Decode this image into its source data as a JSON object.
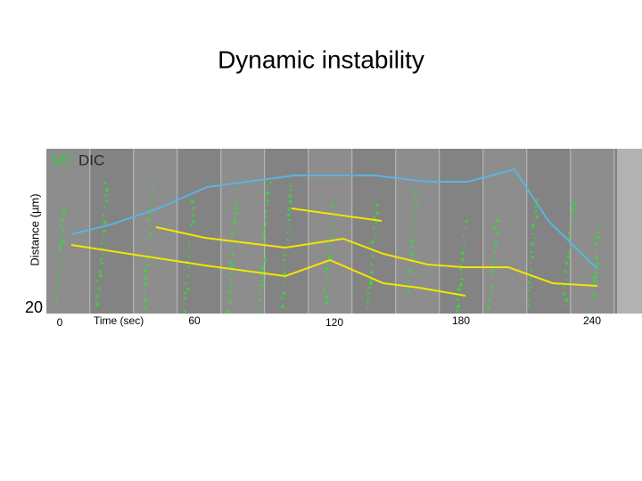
{
  "title": "Dynamic instability",
  "figure": {
    "channel_labels": [
      "MT",
      "DIC"
    ],
    "y_axis_label": "Distance (µm)",
    "y_scale_label": "20",
    "x_axis_label": "Time (sec)",
    "x_tick_labels": [
      "0",
      "60",
      "120",
      "180",
      "240"
    ]
  }
}
